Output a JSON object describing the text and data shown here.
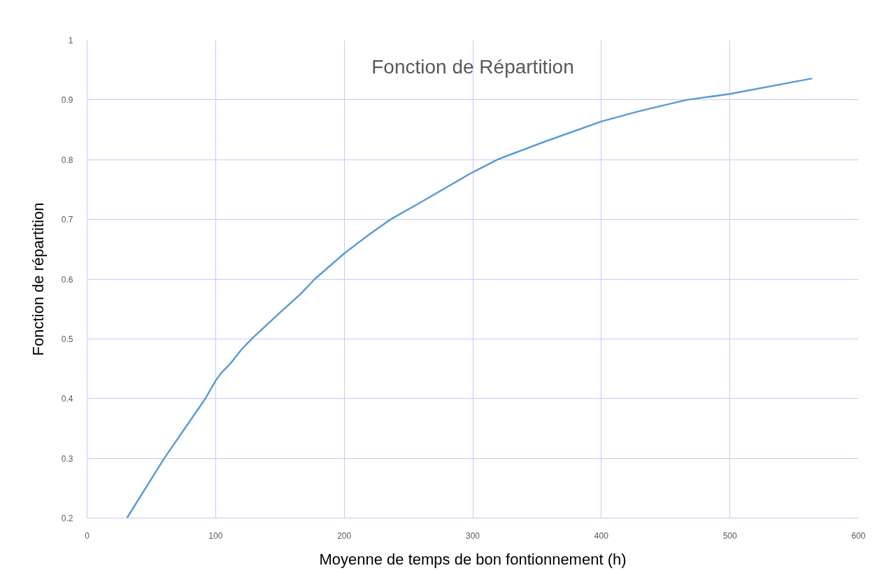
{
  "chart_data": {
    "type": "line",
    "title": "Fonction de Répartition",
    "xlabel": "Moyenne de temps de bon fontionnement (h)",
    "ylabel": "Fonction de répartition",
    "x": [
      31,
      60,
      92,
      100,
      104,
      112,
      120,
      128,
      150,
      166,
      177,
      200,
      219,
      236,
      259,
      299,
      320,
      331,
      357,
      400,
      429,
      466,
      500,
      564
    ],
    "series": [
      {
        "color": "#5b9bd5",
        "values": [
          0.2,
          0.3,
          0.4,
          0.43,
          0.442,
          0.46,
          0.482,
          0.5,
          0.544,
          0.575,
          0.6,
          0.643,
          0.674,
          0.7,
          0.728,
          0.778,
          0.801,
          0.81,
          0.831,
          0.864,
          0.881,
          0.9,
          0.91,
          0.936
        ]
      }
    ],
    "xlim": [
      0,
      600
    ],
    "ylim": [
      0.2,
      1
    ],
    "xticks": [
      0,
      100,
      200,
      300,
      400,
      500,
      600
    ],
    "yticks": [
      0.2,
      0.3,
      0.4,
      0.5,
      0.6,
      0.7,
      0.8,
      0.9,
      1
    ],
    "grid": true,
    "marker": "none",
    "line_style": "solid"
  }
}
